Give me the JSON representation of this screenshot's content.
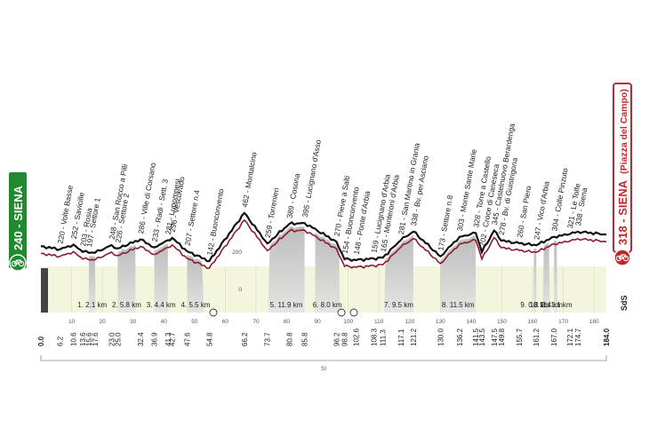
{
  "colors": {
    "sky": "#f3f5dc",
    "gravel": "#c9c9c9",
    "gravel_dark": "#9a9a9a",
    "route_line": "#8c1b2e",
    "profile_outline": "#111111",
    "start_green": "#1f8a2e",
    "finish_red": "#c0282d",
    "grid": "#d9d9c6"
  },
  "start": {
    "label": "240 - SIENA",
    "icon": "bicycle-icon"
  },
  "finish": {
    "label_main": "318 - SIENA",
    "label_sub": "(Piazza del Campo)",
    "icon": "finish-bicycle-icon"
  },
  "total_km": "184.0",
  "start_km": "0.0",
  "altitude_ref": [
    "200",
    "0"
  ],
  "si_label": "SI",
  "logo_text": "SdS",
  "axis_ticks": [
    "10",
    "20",
    "30",
    "40",
    "50",
    "60",
    "70",
    "80",
    "90",
    "100",
    "110",
    "120",
    "130",
    "140",
    "150",
    "160",
    "170",
    "180"
  ],
  "waypoints": [
    {
      "km": 6.2,
      "km_label": "6.2",
      "alt": 220,
      "text": "220 - Volte Basse"
    },
    {
      "km": 10.6,
      "km_label": "10.6",
      "alt": 252,
      "text": "252 - Savicille"
    },
    {
      "km": 13.6,
      "km_label": "13.6",
      "alt": 203,
      "text": "203 - Rosia"
    },
    {
      "km": 15.6,
      "km_label": "15.6",
      "alt": 197,
      "text": "197 - Settore 1"
    },
    {
      "km": 17.6,
      "km_label": "17.6",
      "alt": 197,
      "text": ""
    },
    {
      "km": 23.0,
      "km_label": "23.0",
      "alt": 248,
      "text": "248 - San Rocco a Pilli"
    },
    {
      "km": 25.0,
      "km_label": "25.0",
      "alt": 226,
      "text": "226 - Settore 2"
    },
    {
      "km": 32.4,
      "km_label": "32.4",
      "alt": 286,
      "text": "286 - Ville di Corsano"
    },
    {
      "km": 36.9,
      "km_label": "36.9",
      "alt": 233,
      "text": "233 - Radi - Sett. 3"
    },
    {
      "km": 41.3,
      "km_label": "41.3",
      "alt": 281,
      "text": "281 - Lupompesi"
    },
    {
      "km": 42.7,
      "km_label": "42.7",
      "alt": 296,
      "text": "296 - Vescovado"
    },
    {
      "km": 47.6,
      "km_label": "47.6",
      "alt": 207,
      "text": "207 - Settore n.4"
    },
    {
      "km": 54.8,
      "km_label": "54.8",
      "alt": 142,
      "text": "142 - Buonconvento"
    },
    {
      "km": 66.2,
      "km_label": "66.2",
      "alt": 462,
      "text": "462 - Montalcino"
    },
    {
      "km": 73.7,
      "km_label": "73.7",
      "alt": 259,
      "text": "259 - Torrenieri"
    },
    {
      "km": 80.8,
      "km_label": "80.8",
      "alt": 389,
      "text": "389 - Cosona"
    },
    {
      "km": 85.8,
      "km_label": "85.8",
      "alt": 395,
      "text": "395 - Lucignano d'Asso"
    },
    {
      "km": 96.2,
      "km_label": "96.2",
      "alt": 270,
      "text": "270 - Pieve a Salti"
    },
    {
      "km": 98.8,
      "km_label": "98.8",
      "alt": 154,
      "text": "154 - Buonconvento"
    },
    {
      "km": 102.6,
      "km_label": "102.6",
      "alt": 148,
      "text": "148 - Ponte d'Arbia"
    },
    {
      "km": 108.3,
      "km_label": "108.3",
      "alt": 159,
      "text": "159 - Lucignano d'Arbia"
    },
    {
      "km": 111.3,
      "km_label": "111.3",
      "alt": 165,
      "text": "165 - Monteroni d'Arbia"
    },
    {
      "km": 117.1,
      "km_label": "117.1",
      "alt": 281,
      "text": "281 - San Martino in Grania"
    },
    {
      "km": 121.2,
      "km_label": "121.2",
      "alt": 338,
      "text": "338 - Bv. per Asciano"
    },
    {
      "km": 130.0,
      "km_label": "130.0",
      "alt": 173,
      "text": "173 - Settore n.8"
    },
    {
      "km": 136.2,
      "km_label": "136.2",
      "alt": 303,
      "text": "303 - Monte Sante Marie"
    },
    {
      "km": 141.5,
      "km_label": "141.5",
      "alt": 328,
      "text": "328 - Torre a Castello"
    },
    {
      "km": 143.5,
      "km_label": "143.5",
      "alt": 202,
      "text": "202 - Croce di Caneseca"
    },
    {
      "km": 147.5,
      "km_label": "147.5",
      "alt": 345,
      "text": "345 - Castelnuovo Berardenga"
    },
    {
      "km": 149.8,
      "km_label": "149.8",
      "alt": 278,
      "text": "278 - Bv. di Guistrigona"
    },
    {
      "km": 155.7,
      "km_label": "155.7",
      "alt": 260,
      "text": "260 - San Piero"
    },
    {
      "km": 161.2,
      "km_label": "161.2",
      "alt": 247,
      "text": "247 - Vico d'Arbia"
    },
    {
      "km": 167.0,
      "km_label": "167.0",
      "alt": 304,
      "text": "304 - Colle Pinzuto"
    },
    {
      "km": 172.1,
      "km_label": "172.1",
      "alt": 321,
      "text": "321 - Le Tolfe"
    },
    {
      "km": 174.7,
      "km_label": "174.7",
      "alt": 338,
      "text": "338 - Siena"
    }
  ],
  "gravel_sectors": [
    {
      "from": 15.6,
      "to": 17.8,
      "label": "1. 2.1 km"
    },
    {
      "from": 25.0,
      "to": 30.8,
      "label": "2. 5.8 km"
    },
    {
      "from": 36.9,
      "to": 41.3,
      "label": "3. 4.4 km"
    },
    {
      "from": 47.6,
      "to": 53.1,
      "label": "4. 5.5 km"
    },
    {
      "from": 73.9,
      "to": 85.8,
      "label": "5. 11.9 km"
    },
    {
      "from": 89.2,
      "to": 97.2,
      "label": "6. 8.0 km"
    },
    {
      "from": 111.7,
      "to": 121.2,
      "label": "7. 9.5 km"
    },
    {
      "from": 130.0,
      "to": 141.5,
      "label": "8. 11.5 km"
    },
    {
      "from": 160.4,
      "to": 161.2,
      "label": "9. 0.8 km"
    },
    {
      "from": 163.2,
      "to": 165.6,
      "label": "10. 2.4 km"
    },
    {
      "from": 167.0,
      "to": 168.1,
      "label": "11. 1.1 km"
    }
  ]
}
